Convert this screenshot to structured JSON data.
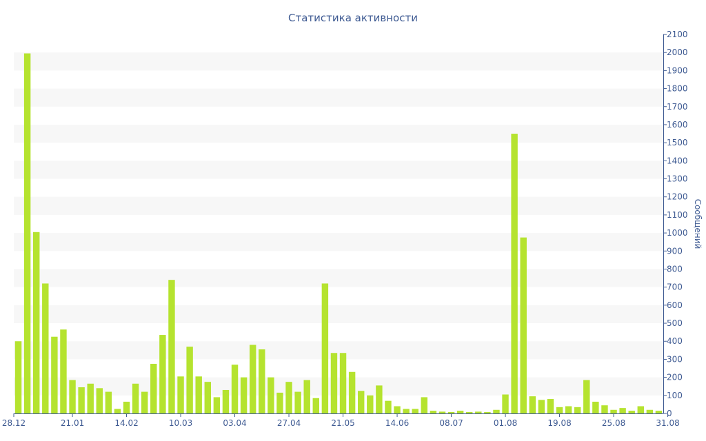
{
  "chart_data": {
    "type": "bar",
    "title": "Статистика активности",
    "xlabel": "",
    "ylabel": "Сообщений",
    "ylim": [
      0,
      2100
    ],
    "y_ticks": [
      0,
      100,
      200,
      300,
      400,
      500,
      600,
      700,
      800,
      900,
      1000,
      1100,
      1200,
      1300,
      1400,
      1500,
      1600,
      1700,
      1800,
      1900,
      2000,
      2100
    ],
    "x_tick_labels": [
      {
        "label": "28.12",
        "index": 0
      },
      {
        "label": "21.01",
        "index": 6
      },
      {
        "label": "14.02",
        "index": 12
      },
      {
        "label": "10.03",
        "index": 18
      },
      {
        "label": "03.04",
        "index": 24
      },
      {
        "label": "27.04",
        "index": 30
      },
      {
        "label": "21.05",
        "index": 36
      },
      {
        "label": "14.06",
        "index": 42
      },
      {
        "label": "08.07",
        "index": 48
      },
      {
        "label": "01.08",
        "index": 54
      },
      {
        "label": "19.08",
        "index": 60
      },
      {
        "label": "25.08",
        "index": 66
      },
      {
        "label": "31.08",
        "index": 72
      }
    ],
    "values": [
      400,
      1995,
      1005,
      720,
      425,
      465,
      185,
      145,
      165,
      140,
      120,
      25,
      65,
      165,
      120,
      275,
      435,
      740,
      205,
      370,
      205,
      175,
      90,
      130,
      270,
      200,
      380,
      355,
      200,
      115,
      175,
      120,
      185,
      85,
      720,
      335,
      335,
      230,
      125,
      100,
      155,
      70,
      40,
      25,
      25,
      90,
      15,
      10,
      8,
      15,
      8,
      10,
      8,
      20,
      105,
      1550,
      975,
      95,
      75,
      80,
      35,
      40,
      35,
      185,
      65,
      45,
      20,
      30,
      15,
      40,
      20,
      15
    ],
    "grid": true,
    "grid_style": "alternating horizontal bands",
    "y_axis_position": "right",
    "legend": "none",
    "colors": {
      "bar": "#b5e32f",
      "band": "#f7f7f7",
      "axis": "#3e5a92",
      "text": "#3e5a92"
    }
  }
}
